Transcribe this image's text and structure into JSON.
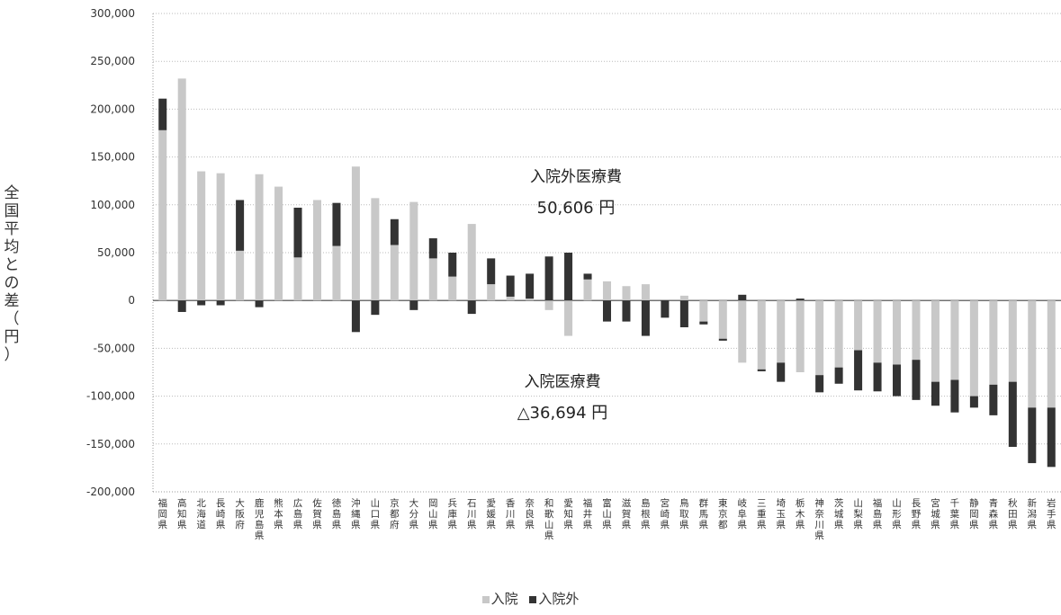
{
  "chart_data": {
    "type": "bar",
    "stacked": true,
    "ylabel": "全国平均との差（円）",
    "ylim": [
      -200000,
      300000
    ],
    "yticks": [
      300000,
      250000,
      200000,
      150000,
      100000,
      50000,
      0,
      -50000,
      -100000,
      -150000,
      -200000
    ],
    "ytick_labels": [
      "300,000",
      "250,000",
      "200,000",
      "150,000",
      "100,000",
      "50,000",
      "0",
      "-50,000",
      "-100,000",
      "-150,000",
      "-200,000"
    ],
    "grid": true,
    "legend_position": "bottom",
    "categories": [
      "福岡県",
      "高知県",
      "北海道",
      "長崎県",
      "大阪府",
      "鹿児島県",
      "熊本県",
      "広島県",
      "佐賀県",
      "徳島県",
      "沖縄県",
      "山口県",
      "京都府",
      "大分県",
      "岡山県",
      "兵庫県",
      "石川県",
      "愛媛県",
      "香川県",
      "奈良県",
      "和歌山県",
      "愛知県",
      "福井県",
      "富山県",
      "滋賀県",
      "島根県",
      "宮崎県",
      "鳥取県",
      "群馬県",
      "東京都",
      "岐阜県",
      "三重県",
      "埼玉県",
      "栃木県",
      "神奈川県",
      "茨城県",
      "山梨県",
      "福島県",
      "山形県",
      "長野県",
      "宮城県",
      "千葉県",
      "静岡県",
      "青森県",
      "秋田県",
      "新潟県",
      "岩手県"
    ],
    "series": [
      {
        "name": "入院",
        "color": "#c8c8c8",
        "values": [
          178000,
          232000,
          135000,
          133000,
          52000,
          132000,
          119000,
          45000,
          105000,
          57000,
          140000,
          107000,
          58000,
          103000,
          44000,
          25000,
          80000,
          17000,
          4000,
          2000,
          -10000,
          -37000,
          22000,
          20000,
          15000,
          17000,
          0,
          5000,
          -22000,
          -40000,
          -65000,
          -72000,
          -65000,
          -75000,
          -78000,
          -70000,
          -52000,
          -65000,
          -67000,
          -62000,
          -85000,
          -83000,
          -100000,
          -88000,
          -85000,
          -112000,
          -112000
        ]
      },
      {
        "name": "入院外",
        "color": "#333333",
        "values": [
          33000,
          -12000,
          -5000,
          -5000,
          53000,
          -7000,
          0,
          52000,
          0,
          45000,
          -33000,
          -15000,
          27000,
          -10000,
          21000,
          25000,
          -14000,
          27000,
          22000,
          26000,
          46000,
          50000,
          6000,
          -22000,
          -22000,
          -37000,
          -18000,
          -28000,
          -3000,
          -2000,
          6000,
          -2000,
          -20000,
          2000,
          -18000,
          -17000,
          -42000,
          -30000,
          -33000,
          -42000,
          -25000,
          -34000,
          -12000,
          -32000,
          -68000,
          -58000,
          -62000
        ]
      }
    ],
    "annotations": [
      {
        "text": "入院外医療費",
        "value": "50,606 円"
      },
      {
        "text": "入院医療費",
        "value": "△36,694 円"
      }
    ]
  },
  "legend": [
    "入院",
    "入院外"
  ],
  "ylabel_chars": [
    "全",
    "国",
    "平",
    "均",
    "と",
    "の",
    "差",
    "（",
    "円",
    "）"
  ]
}
